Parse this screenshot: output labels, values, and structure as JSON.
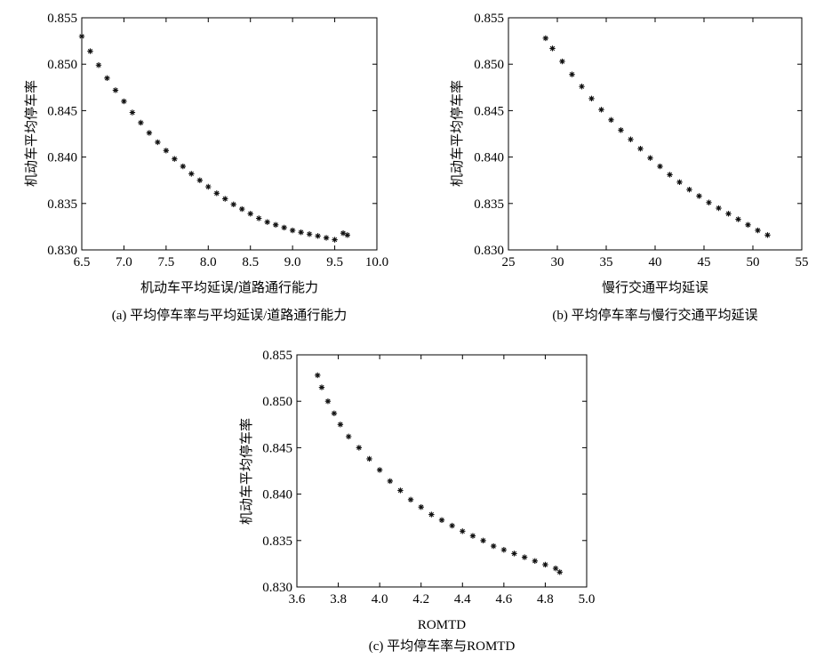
{
  "chart_data": [
    {
      "id": "a",
      "type": "scatter",
      "caption": "(a) 平均停车率与平均延误/道路通行能力",
      "xlabel": "机动车平均延误/道路通行能力",
      "ylabel": "机动车平均停车率",
      "xlim": [
        6.5,
        10.0
      ],
      "ylim": [
        0.83,
        0.855
      ],
      "xticks": [
        "6.5",
        "7.0",
        "7.5",
        "8.0",
        "8.5",
        "9.0",
        "9.5",
        "10.0"
      ],
      "yticks": [
        "0.830",
        "0.835",
        "0.840",
        "0.845",
        "0.850",
        "0.855"
      ],
      "grid": false,
      "marker": "*",
      "x": [
        6.5,
        6.6,
        6.7,
        6.8,
        6.9,
        7.0,
        7.1,
        7.2,
        7.3,
        7.4,
        7.5,
        7.6,
        7.7,
        7.8,
        7.9,
        8.0,
        8.1,
        8.2,
        8.3,
        8.4,
        8.5,
        8.6,
        8.7,
        8.8,
        8.9,
        9.0,
        9.1,
        9.2,
        9.3,
        9.4,
        9.5,
        9.6,
        9.65
      ],
      "y": [
        0.853,
        0.8514,
        0.8499,
        0.8485,
        0.8472,
        0.846,
        0.8448,
        0.8437,
        0.8426,
        0.8416,
        0.8407,
        0.8398,
        0.839,
        0.8382,
        0.8375,
        0.8368,
        0.8361,
        0.8355,
        0.8349,
        0.8344,
        0.8339,
        0.8334,
        0.833,
        0.8327,
        0.8324,
        0.8321,
        0.8319,
        0.8317,
        0.8315,
        0.8313,
        0.8311,
        0.8318,
        0.8316
      ]
    },
    {
      "id": "b",
      "type": "scatter",
      "caption": "(b) 平均停车率与慢行交通平均延误",
      "xlabel": "慢行交通平均延误",
      "ylabel": "机动车平均停车率",
      "xlim": [
        25,
        55
      ],
      "ylim": [
        0.83,
        0.855
      ],
      "xticks": [
        "25",
        "30",
        "35",
        "40",
        "45",
        "50",
        "55"
      ],
      "yticks": [
        "0.830",
        "0.835",
        "0.840",
        "0.845",
        "0.850",
        "0.855"
      ],
      "grid": false,
      "marker": "*",
      "x": [
        28.8,
        29.5,
        30.5,
        31.5,
        32.5,
        33.5,
        34.5,
        35.5,
        36.5,
        37.5,
        38.5,
        39.5,
        40.5,
        41.5,
        42.5,
        43.5,
        44.5,
        45.5,
        46.5,
        47.5,
        48.5,
        49.5,
        50.5,
        51.5
      ],
      "y": [
        0.8528,
        0.8517,
        0.8503,
        0.8489,
        0.8476,
        0.8463,
        0.8451,
        0.844,
        0.8429,
        0.8419,
        0.8409,
        0.8399,
        0.839,
        0.8381,
        0.8373,
        0.8365,
        0.8358,
        0.8351,
        0.8345,
        0.8339,
        0.8333,
        0.8327,
        0.8321,
        0.8316
      ]
    },
    {
      "id": "c",
      "type": "scatter",
      "caption": "(c) 平均停车率与ROMTD",
      "xlabel": "ROMTD",
      "ylabel": "机动车平均停车率",
      "xlim": [
        3.6,
        5.0
      ],
      "ylim": [
        0.83,
        0.855
      ],
      "xticks": [
        "3.6",
        "3.8",
        "4.0",
        "4.2",
        "4.4",
        "4.6",
        "4.8",
        "5.0"
      ],
      "yticks": [
        "0.830",
        "0.835",
        "0.840",
        "0.845",
        "0.850",
        "0.855"
      ],
      "grid": false,
      "marker": "*",
      "x": [
        3.7,
        3.72,
        3.75,
        3.78,
        3.81,
        3.85,
        3.9,
        3.95,
        4.0,
        4.05,
        4.1,
        4.15,
        4.2,
        4.25,
        4.3,
        4.35,
        4.4,
        4.45,
        4.5,
        4.55,
        4.6,
        4.65,
        4.7,
        4.75,
        4.8,
        4.85,
        4.87
      ],
      "y": [
        0.8528,
        0.8515,
        0.85,
        0.8487,
        0.8475,
        0.8462,
        0.845,
        0.8438,
        0.8426,
        0.8414,
        0.8404,
        0.8394,
        0.8386,
        0.8378,
        0.8372,
        0.8366,
        0.836,
        0.8355,
        0.835,
        0.8344,
        0.834,
        0.8336,
        0.8332,
        0.8328,
        0.8324,
        0.832,
        0.8316
      ]
    }
  ]
}
